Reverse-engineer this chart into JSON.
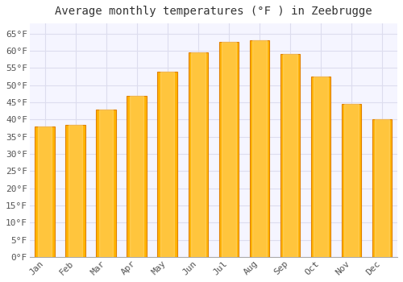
{
  "title": "Average monthly temperatures (°F ) in Zeebrugge",
  "months": [
    "Jan",
    "Feb",
    "Mar",
    "Apr",
    "May",
    "Jun",
    "Jul",
    "Aug",
    "Sep",
    "Oct",
    "Nov",
    "Dec"
  ],
  "values": [
    38,
    38.5,
    43,
    47,
    54,
    59.5,
    62.5,
    63,
    59,
    52.5,
    44.5,
    40
  ],
  "bar_color": "#FFB300",
  "bar_edge_color": "#E08000",
  "background_color": "#FFFFFF",
  "plot_bg_color": "#F5F5FF",
  "grid_color": "#DDDDEE",
  "ylim": [
    0,
    68
  ],
  "yticks": [
    0,
    5,
    10,
    15,
    20,
    25,
    30,
    35,
    40,
    45,
    50,
    55,
    60,
    65
  ],
  "title_fontsize": 10,
  "tick_fontsize": 8,
  "tick_font_family": "monospace"
}
